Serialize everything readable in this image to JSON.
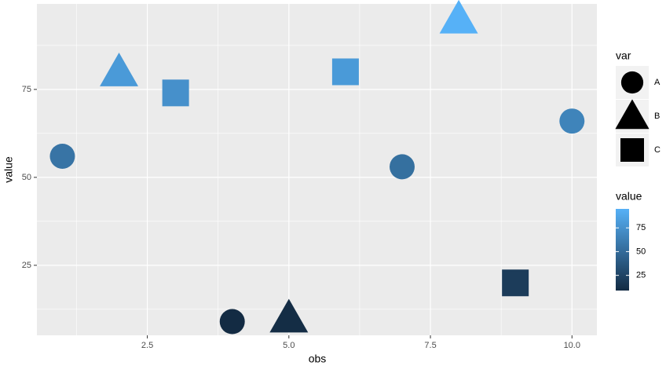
{
  "chart_data": {
    "type": "scatter",
    "x_label": "obs",
    "y_label": "value",
    "series": [
      {
        "name": "A",
        "shape": "circle",
        "x": [
          1,
          4,
          7,
          10
        ],
        "values": [
          56,
          9,
          53,
          66
        ]
      },
      {
        "name": "B",
        "shape": "triangle",
        "x": [
          2,
          5,
          8
        ],
        "values": [
          80,
          10,
          95
        ]
      },
      {
        "name": "C",
        "shape": "square",
        "x": [
          3,
          6,
          9
        ],
        "values": [
          74,
          80,
          20
        ]
      }
    ],
    "xlim": [
      0.55,
      10.44
    ],
    "ylim": [
      5.1,
      99.3
    ],
    "xticks": [
      {
        "value": 2.5,
        "label": "2.5"
      },
      {
        "value": 5,
        "label": "5.0"
      },
      {
        "value": 7.5,
        "label": "7.5"
      },
      {
        "value": 10,
        "label": "10.0"
      }
    ],
    "yticks": [
      25,
      50,
      75
    ],
    "minor_xticks": [
      1.25,
      3.75,
      6.25,
      8.75
    ],
    "minor_yticks": [
      12.5,
      37.5,
      62.5,
      87.5
    ],
    "grid": true,
    "shape_legend_title": "var",
    "color_legend_title": "value",
    "color_low": "#132B43",
    "color_high": "#56B1F7",
    "colorbar_ticks": [
      25,
      50,
      75
    ]
  }
}
